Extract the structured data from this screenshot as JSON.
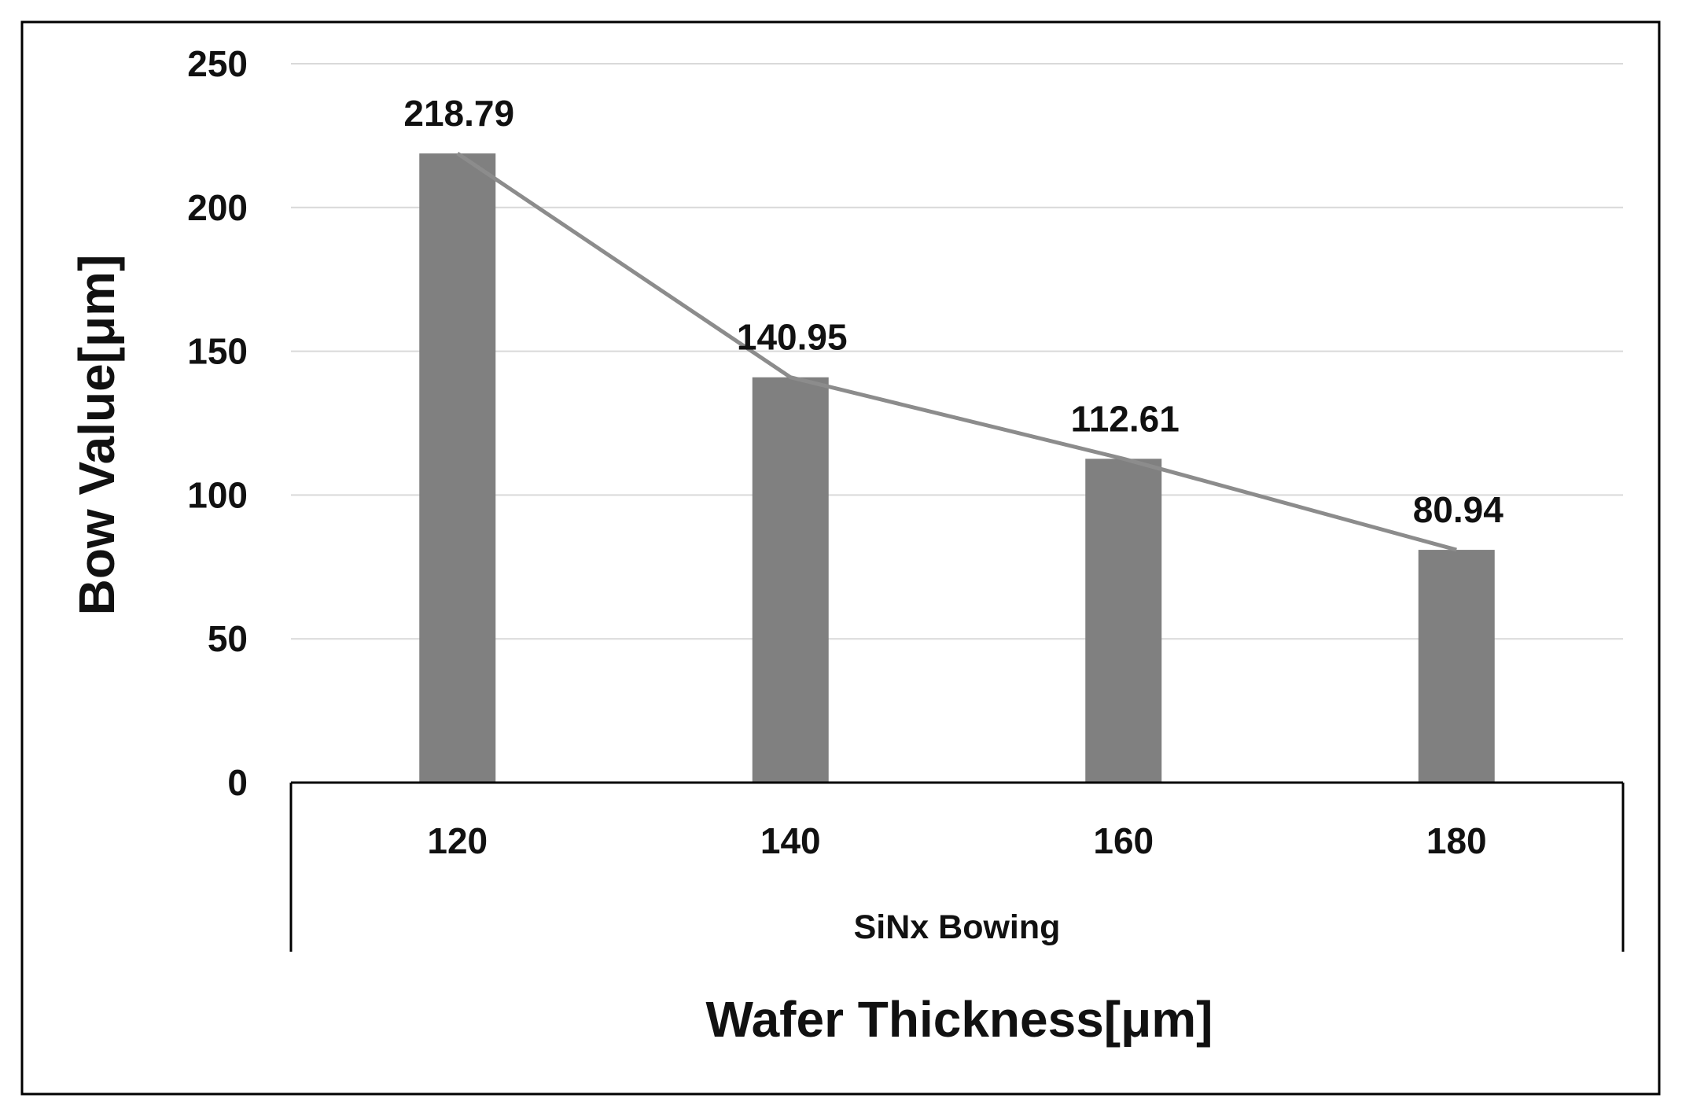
{
  "chart_data": {
    "type": "bar",
    "title": "",
    "categories": [
      "120",
      "140",
      "160",
      "180"
    ],
    "values": [
      218.79,
      140.95,
      112.61,
      80.94
    ],
    "data_labels": [
      "218.79",
      "140.95",
      "112.61",
      "80.94"
    ],
    "trend_line": true,
    "group_label": "SiNx Bowing",
    "xlabel": "Wafer Thickness[μm]",
    "ylabel": "Bow Value[μm]",
    "ylim": [
      0,
      250
    ],
    "yticks": [
      0,
      50,
      100,
      150,
      200,
      250
    ],
    "ytick_labels": [
      "0",
      "50",
      "100",
      "150",
      "200",
      "250"
    ],
    "grid": true,
    "bar_color": "#808080",
    "line_color": "#8c8c8c",
    "grid_color": "#d9d9d9"
  }
}
